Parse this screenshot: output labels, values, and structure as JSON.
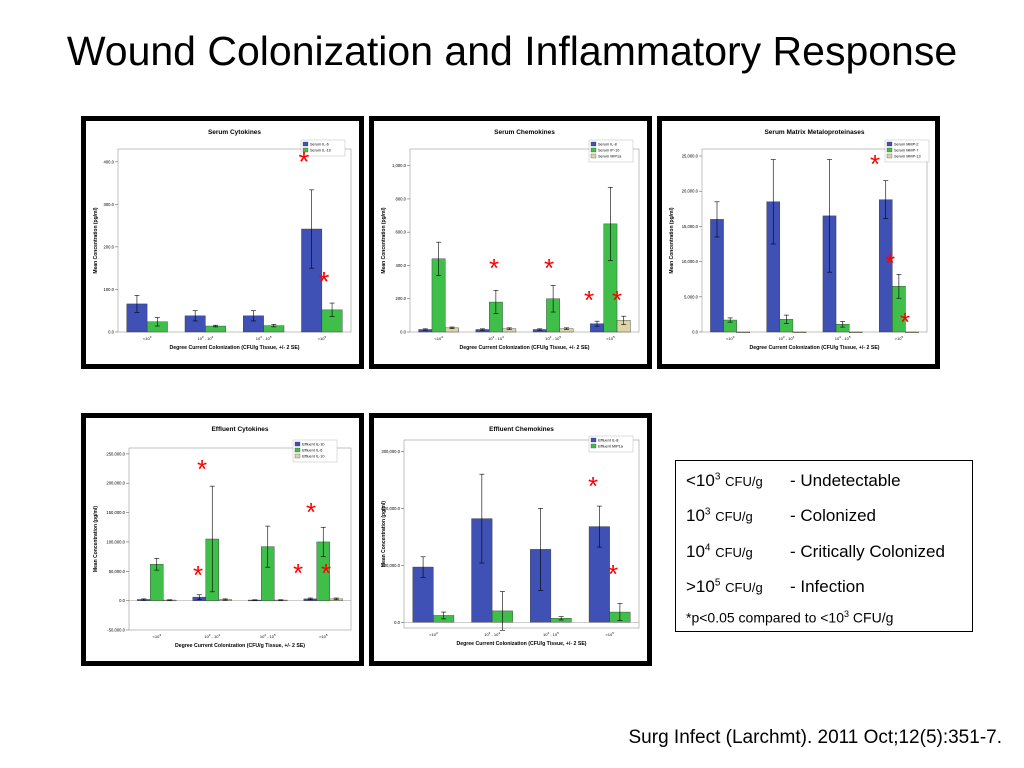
{
  "slide": {
    "title": "Wound Colonization and Inflammatory Response",
    "citation": "Surg Infect (Larchmt). 2011 Oct;12(5):351-7."
  },
  "legend": {
    "rows": [
      {
        "prefix": "<10",
        "exp": "3",
        "unit": "CFU/g",
        "desc": "- Undetectable"
      },
      {
        "prefix": "10",
        "exp": "3",
        "unit": "CFU/g",
        "desc": "- Colonized"
      },
      {
        "prefix": "10",
        "exp": "4",
        "unit": "CFU/g",
        "desc": "- Critically Colonized"
      },
      {
        "prefix": ">10",
        "exp": "5",
        "unit": "CFU/g",
        "desc": "- Infection"
      }
    ],
    "note_prefix": "*p<0.05 compared to <10",
    "note_exp": "3",
    "note_suffix": " CFU/g"
  },
  "colors": {
    "blue": "#3f51b5",
    "green": "#3fbf4a",
    "tan": "#ddd4a6",
    "star": "#ff0000"
  },
  "chart_data": [
    {
      "type": "bar",
      "title": "Serum Cytokines",
      "xlabel": "Degree Current Colonization (CFU/g Tissue, +/- 2 SE)",
      "ylabel": "Mean Concentration (pg/ml)",
      "categories": [
        "<10^3",
        "10^3 - 10^4",
        "10^4 - 10^5",
        ">10^5"
      ],
      "ylim": [
        0,
        430
      ],
      "yticks": [
        0,
        100,
        200,
        300,
        400
      ],
      "ytick_labels": [
        "0.0",
        "100.0",
        "200.0",
        "300.0",
        "400.0"
      ],
      "series": [
        {
          "name": "Serum IL-6",
          "color": "blue",
          "values": [
            66,
            38,
            38,
            242
          ],
          "err": [
            20,
            12,
            12,
            92
          ]
        },
        {
          "name": "Serum IL-10",
          "color": "green",
          "values": [
            24,
            14,
            15,
            52
          ],
          "err": [
            10,
            2,
            3,
            16
          ]
        }
      ],
      "stars": [
        "*",
        "*"
      ]
    },
    {
      "type": "bar",
      "title": "Serum Chemokines",
      "xlabel": "Degree Current Colonization (CFU/g Tissue, +/- 2 SE)",
      "ylabel": "Mean Concentration (pg/ml)",
      "categories": [
        "<10^3",
        "10^3 - 10^4",
        "10^4 - 10^5",
        ">10^5"
      ],
      "ylim": [
        0,
        1100
      ],
      "yticks": [
        0,
        200,
        400,
        600,
        800,
        1000
      ],
      "ytick_labels": [
        "0.0",
        "200.0",
        "400.0",
        "600.0",
        "800.0",
        "1,000.0"
      ],
      "series": [
        {
          "name": "Serum IL-8",
          "color": "blue",
          "values": [
            15,
            15,
            15,
            50
          ],
          "err": [
            4,
            4,
            4,
            15
          ]
        },
        {
          "name": "Serum IP-10",
          "color": "green",
          "values": [
            440,
            180,
            200,
            650
          ],
          "err": [
            100,
            70,
            80,
            220
          ]
        },
        {
          "name": "Serum MIP1a",
          "color": "tan",
          "values": [
            25,
            20,
            20,
            70
          ],
          "err": [
            5,
            5,
            5,
            25
          ]
        }
      ],
      "stars": [
        "*",
        "*",
        "*",
        "*"
      ]
    },
    {
      "type": "bar",
      "title": "Serum Matrix Metaloproteinases",
      "xlabel": "Degree Current Colonization (CFU/g Tissue, +/- 2 SE)",
      "ylabel": "Mean Concentration (pg/ml)",
      "categories": [
        "<10^3",
        "10^3 - 10^4",
        "10^4 - 10^5",
        ">10^5"
      ],
      "ylim": [
        0,
        26000
      ],
      "yticks": [
        0,
        5000,
        10000,
        15000,
        20000,
        25000
      ],
      "ytick_labels": [
        "0.0",
        "5,000.0",
        "10,000.0",
        "15,000.0",
        "20,000.0",
        "25,000.0"
      ],
      "series": [
        {
          "name": "Serum MMP-2",
          "color": "blue",
          "values": [
            16000,
            18500,
            16500,
            18800
          ],
          "err": [
            2500,
            6000,
            8000,
            2700
          ]
        },
        {
          "name": "Serum MMP-7",
          "color": "green",
          "values": [
            1700,
            1800,
            1100,
            6500
          ],
          "err": [
            300,
            600,
            400,
            1700
          ]
        },
        {
          "name": "Serum MMP-13",
          "color": "tan",
          "values": [
            0,
            0,
            0,
            0
          ],
          "err": [
            0,
            0,
            0,
            0
          ]
        }
      ],
      "stars": [
        "*",
        "*",
        "*"
      ]
    },
    {
      "type": "bar",
      "title": "Effluent Cytokines",
      "xlabel": "Degree Current Colonization (CFU/g Tissue, +/- 2 SE)",
      "ylabel": "Mean Concentration (pg/ml)",
      "categories": [
        "<10^3",
        "10^3 - 10^4",
        "10^4 - 10^5",
        ">10^5"
      ],
      "ylim": [
        -50000,
        260000
      ],
      "yticks": [
        -50000,
        0,
        50000,
        100000,
        150000,
        200000,
        250000
      ],
      "ytick_labels": [
        "-50,000.0",
        "0.0",
        "50,000.0",
        "100,000.0",
        "150,000.0",
        "200,000.0",
        "250,000.0"
      ],
      "series": [
        {
          "name": "Effluent IL-1b",
          "color": "blue",
          "values": [
            2000,
            6000,
            1000,
            3000
          ],
          "err": [
            1000,
            4000,
            500,
            1500
          ]
        },
        {
          "name": "Effluent IL-6",
          "color": "green",
          "values": [
            62000,
            105000,
            92000,
            100000
          ],
          "err": [
            10000,
            90000,
            35000,
            25000
          ]
        },
        {
          "name": "Effluent IL-10",
          "color": "tan",
          "values": [
            1000,
            2000,
            1000,
            3000
          ],
          "err": [
            500,
            1000,
            500,
            1500
          ]
        }
      ],
      "stars": [
        "*",
        "*",
        "*",
        "*",
        "*"
      ]
    },
    {
      "type": "bar",
      "title": "Effluent Chemokines",
      "xlabel": "Degree Current Colonization (CFU/g Tissue, +/- 2 SE)",
      "ylabel": "Mean Concentration (pg/ml)",
      "categories": [
        "<10^3",
        "10^3 - 10^4",
        "10^4 - 10^5",
        ">10^5"
      ],
      "ylim": [
        -10000,
        320000
      ],
      "yticks": [
        0,
        100000,
        200000,
        300000
      ],
      "ytick_labels": [
        "0.0",
        "100,000.0",
        "200,000.0",
        "300,000.0"
      ],
      "series": [
        {
          "name": "Effluent IL-8",
          "color": "blue",
          "values": [
            97000,
            182000,
            128000,
            168000
          ],
          "err": [
            18000,
            78000,
            72000,
            36000
          ]
        },
        {
          "name": "Effluent MIP1a",
          "color": "green",
          "values": [
            12000,
            20000,
            7000,
            18000
          ],
          "err": [
            6000,
            34000,
            3000,
            15000
          ]
        }
      ],
      "stars": [
        "*",
        "*"
      ]
    }
  ]
}
